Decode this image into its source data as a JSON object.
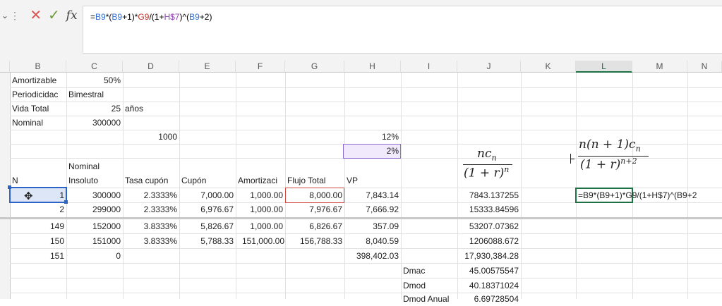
{
  "formula_bar": {
    "dropdown_glyph": "⌄",
    "separator_glyph": "⋮",
    "cancel_icon": "✕",
    "enter_icon": "✓",
    "fx_label": "fx",
    "formula_parts": [
      "=",
      "B9",
      "*(",
      "B9",
      "+1)*",
      "G9",
      "/(1+",
      "H$7",
      ")^(",
      "B9",
      "+2)"
    ]
  },
  "columns": [
    "B",
    "C",
    "D",
    "E",
    "F",
    "G",
    "H",
    "I",
    "J",
    "K",
    "L",
    "M",
    "N"
  ],
  "active_column": "L",
  "top_rows": [
    {
      "b": "Amortizable",
      "c": "50%"
    },
    {
      "b": "Periodicidac",
      "c": "Bimestral"
    },
    {
      "b": "Vida Total",
      "c": "25",
      "d": "años"
    },
    {
      "b": "Nominal",
      "c": "300000"
    }
  ],
  "row_params": {
    "d": "1000",
    "h1": "12%",
    "h2": "2%"
  },
  "headers": {
    "n": "N",
    "nominal_1": "Nominal",
    "nominal_2": "Insoluto",
    "tasa": "Tasa cupón",
    "cupon": "Cupón",
    "amort": "Amortizaci",
    "flujo": "Flujo Total",
    "vp": "VP"
  },
  "math": {
    "j_num": "nc",
    "j_num_sub": "n",
    "j_den": "(1 + r)",
    "j_den_sup": "n",
    "l_num": "n(n + 1)c",
    "l_num_sub": "n",
    "l_den": "(1 + r)",
    "l_den_sup": "n+2"
  },
  "data_rows": [
    {
      "b": "1",
      "c": "300000",
      "d": "2.3333%",
      "e": "7,000.00",
      "f": "1,000.00",
      "g": "8,000.00",
      "h": "7,843.14",
      "j": "7843.137255",
      "l": "=B9*(B9+1)*G9/(1+H$7)^(B9+2"
    },
    {
      "b": "2",
      "c": "299000",
      "d": "2.3333%",
      "e": "6,976.67",
      "f": "1,000.00",
      "g": "7,976.67",
      "h": "7,666.92",
      "j": "15333.84596"
    },
    {
      "b": "149",
      "c": "152000",
      "d": "3.8333%",
      "e": "5,826.67",
      "f": "1,000.00",
      "g": "6,826.67",
      "h": "357.09",
      "j": "53207.07362"
    },
    {
      "b": "150",
      "c": "151000",
      "d": "3.8333%",
      "e": "5,788.33",
      "f": "151,000.00",
      "g": "156,788.33",
      "h": "8,040.59",
      "j": "1206088.672"
    },
    {
      "b": "151",
      "c": "0",
      "h": "398,402.03",
      "j": "17,930,384.28"
    }
  ],
  "summary": [
    {
      "label": "Dmac",
      "value": "45.00575547"
    },
    {
      "label": "Dmod",
      "value": "40.18371024"
    },
    {
      "label": "Dmod Anual",
      "value": "6.69728504"
    }
  ],
  "colors": {
    "selection": "#2b63c6",
    "flow_selection": "#d04a43",
    "rate_selection": "#8e6bd1",
    "active": "#1e7145"
  }
}
